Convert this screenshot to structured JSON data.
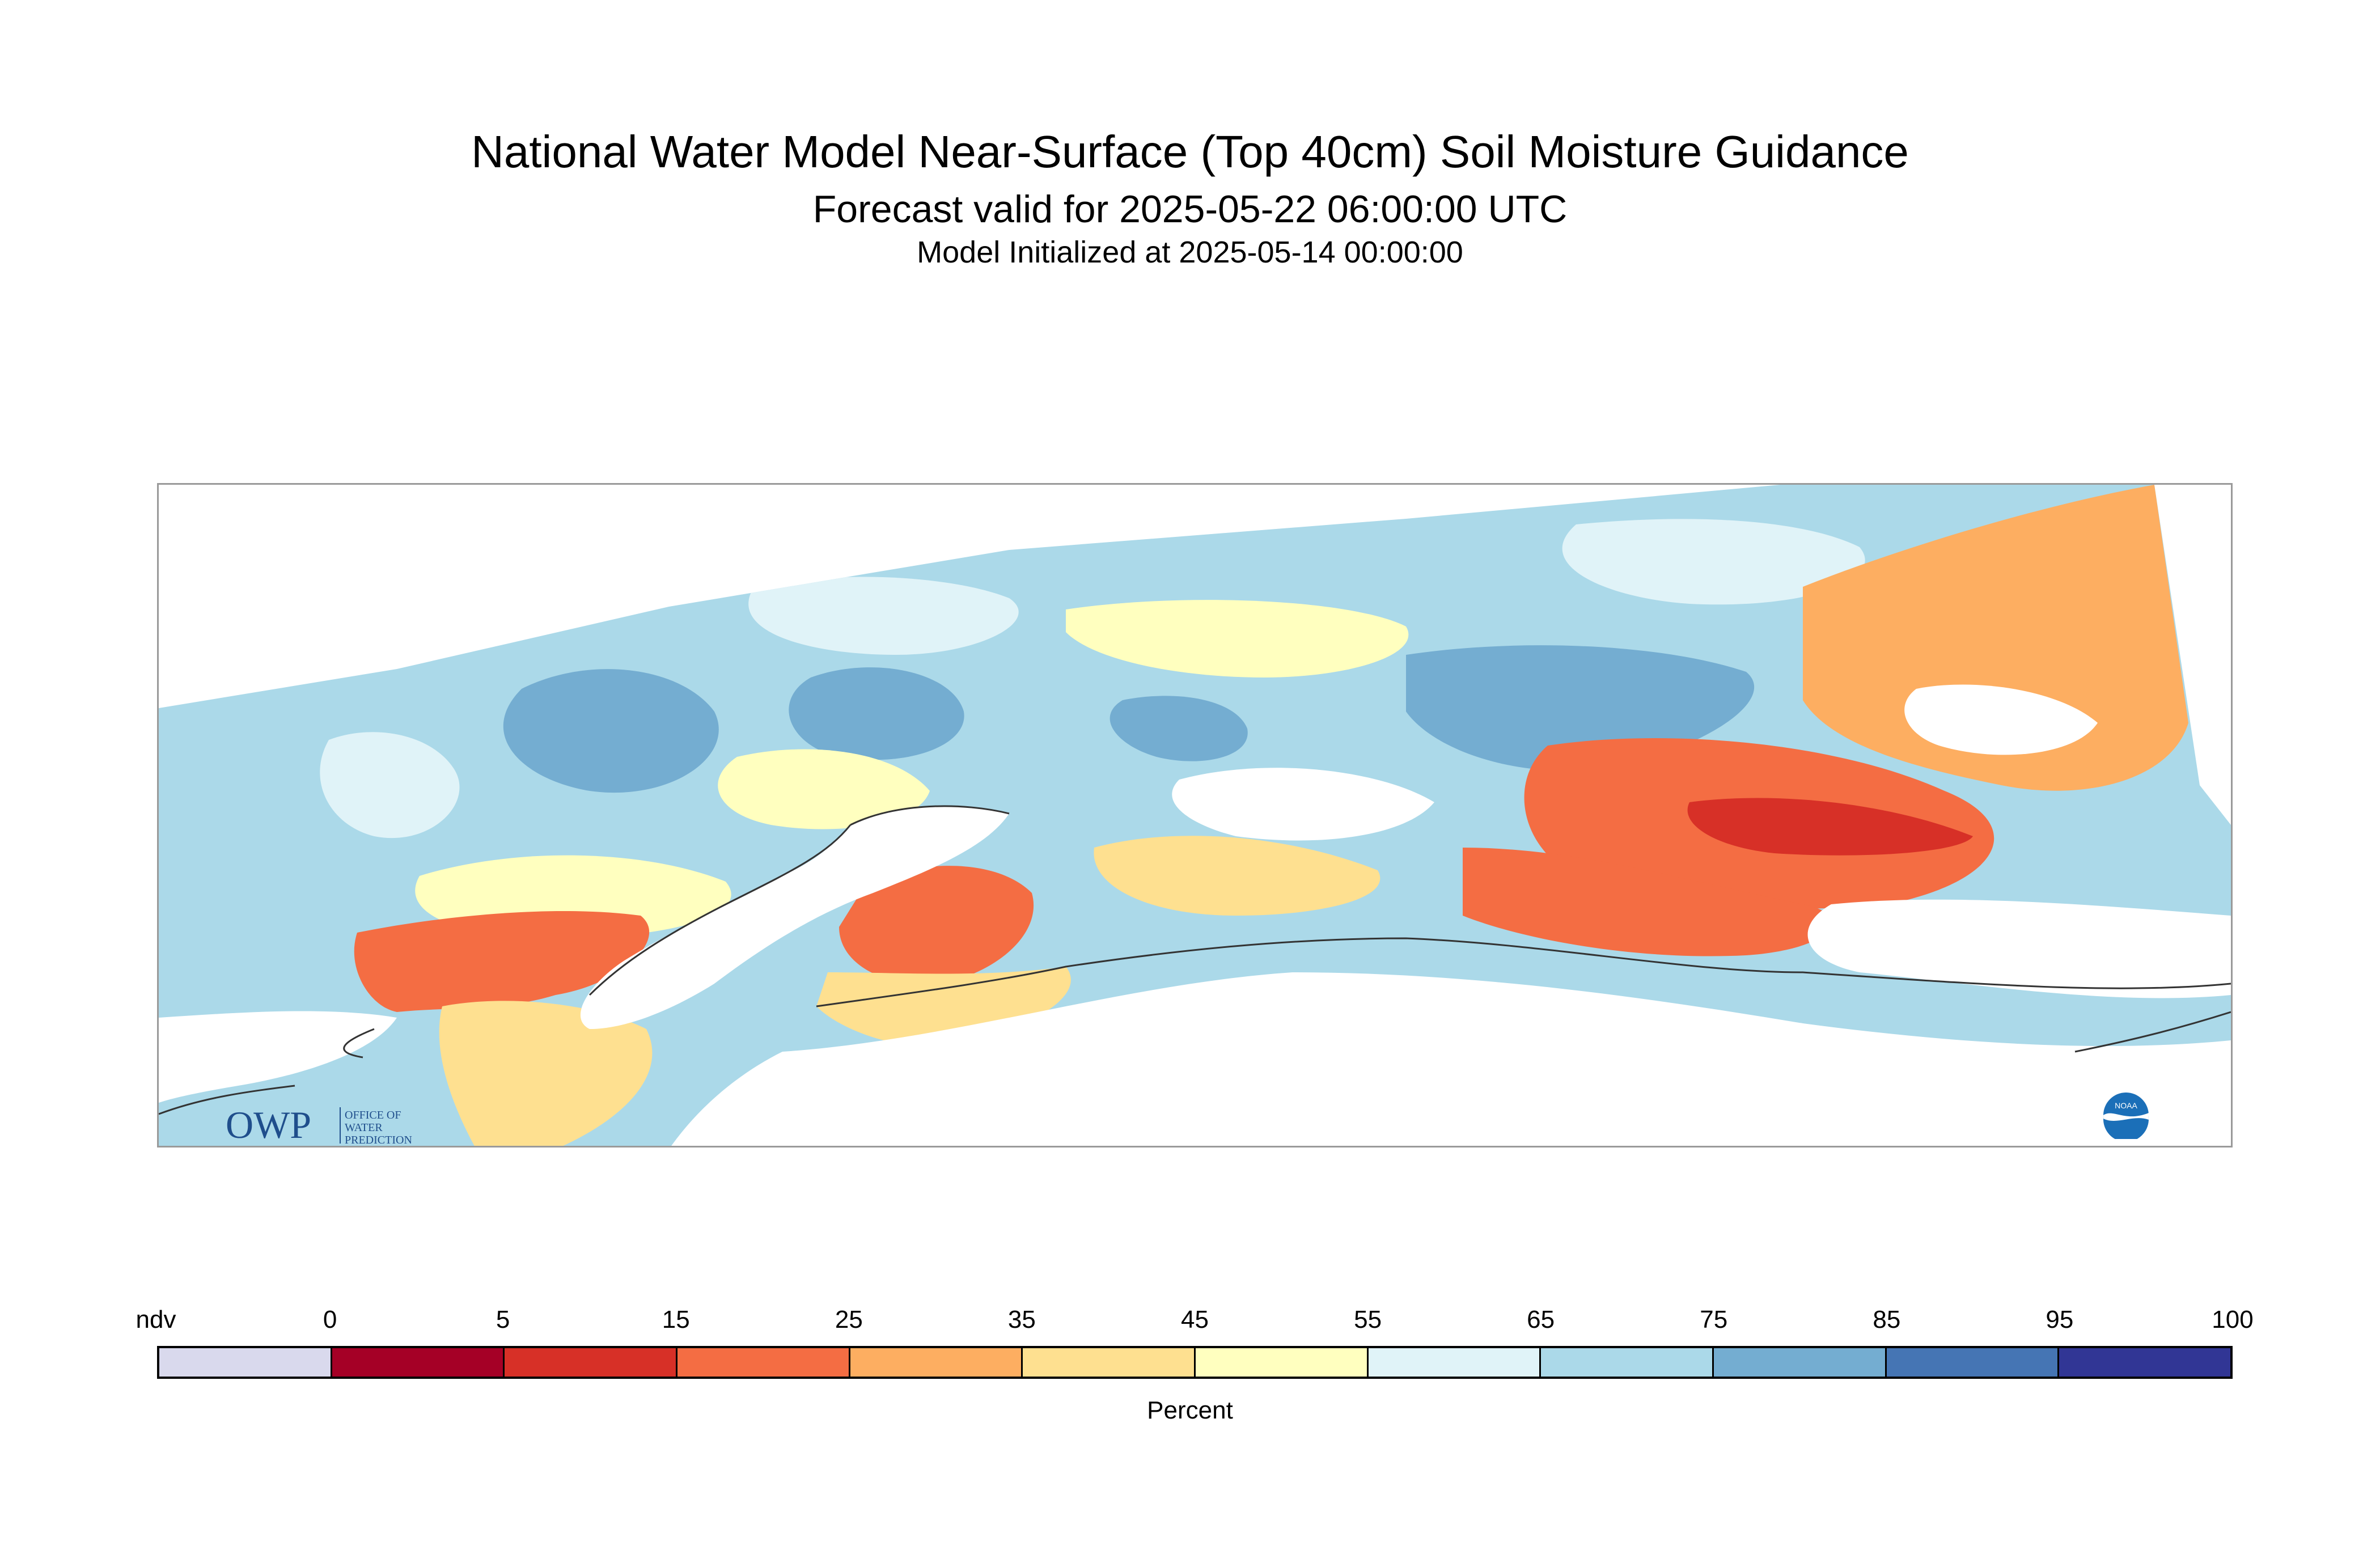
{
  "header": {
    "title": "National Water Model Near-Surface (Top 40cm) Soil Moisture Guidance",
    "subtitle": "Forecast valid for 2025-05-22 06:00:00 UTC",
    "init": "Model Initialized at 2025-05-14 00:00:00"
  },
  "logos": {
    "owp_text": "OWP",
    "owp_caption_1": "OFFICE OF",
    "owp_caption_2": "WATER",
    "owp_caption_3": "PREDICTION",
    "noaa_text": "NOAA"
  },
  "legend": {
    "label": "Percent",
    "ticks": [
      "ndv",
      "0",
      "5",
      "15",
      "25",
      "35",
      "45",
      "55",
      "65",
      "75",
      "85",
      "95",
      "100"
    ],
    "colors": [
      "#d9d9ed",
      "#a50026",
      "#d73027",
      "#f46d43",
      "#fdae61",
      "#fee090",
      "#ffffbf",
      "#e0f3f8",
      "#abd9e9",
      "#74add1",
      "#4575b4",
      "#313695"
    ]
  },
  "map": {
    "palette": {
      "light_blue": "#abd9e9",
      "mid_blue": "#74add1",
      "pale_blue": "#e0f3f8",
      "pale_yellow": "#ffffbf",
      "yellow": "#fee090",
      "orange": "#fdae61",
      "red_orange": "#f46d43",
      "red": "#d73027",
      "water": "#ffffff"
    }
  }
}
